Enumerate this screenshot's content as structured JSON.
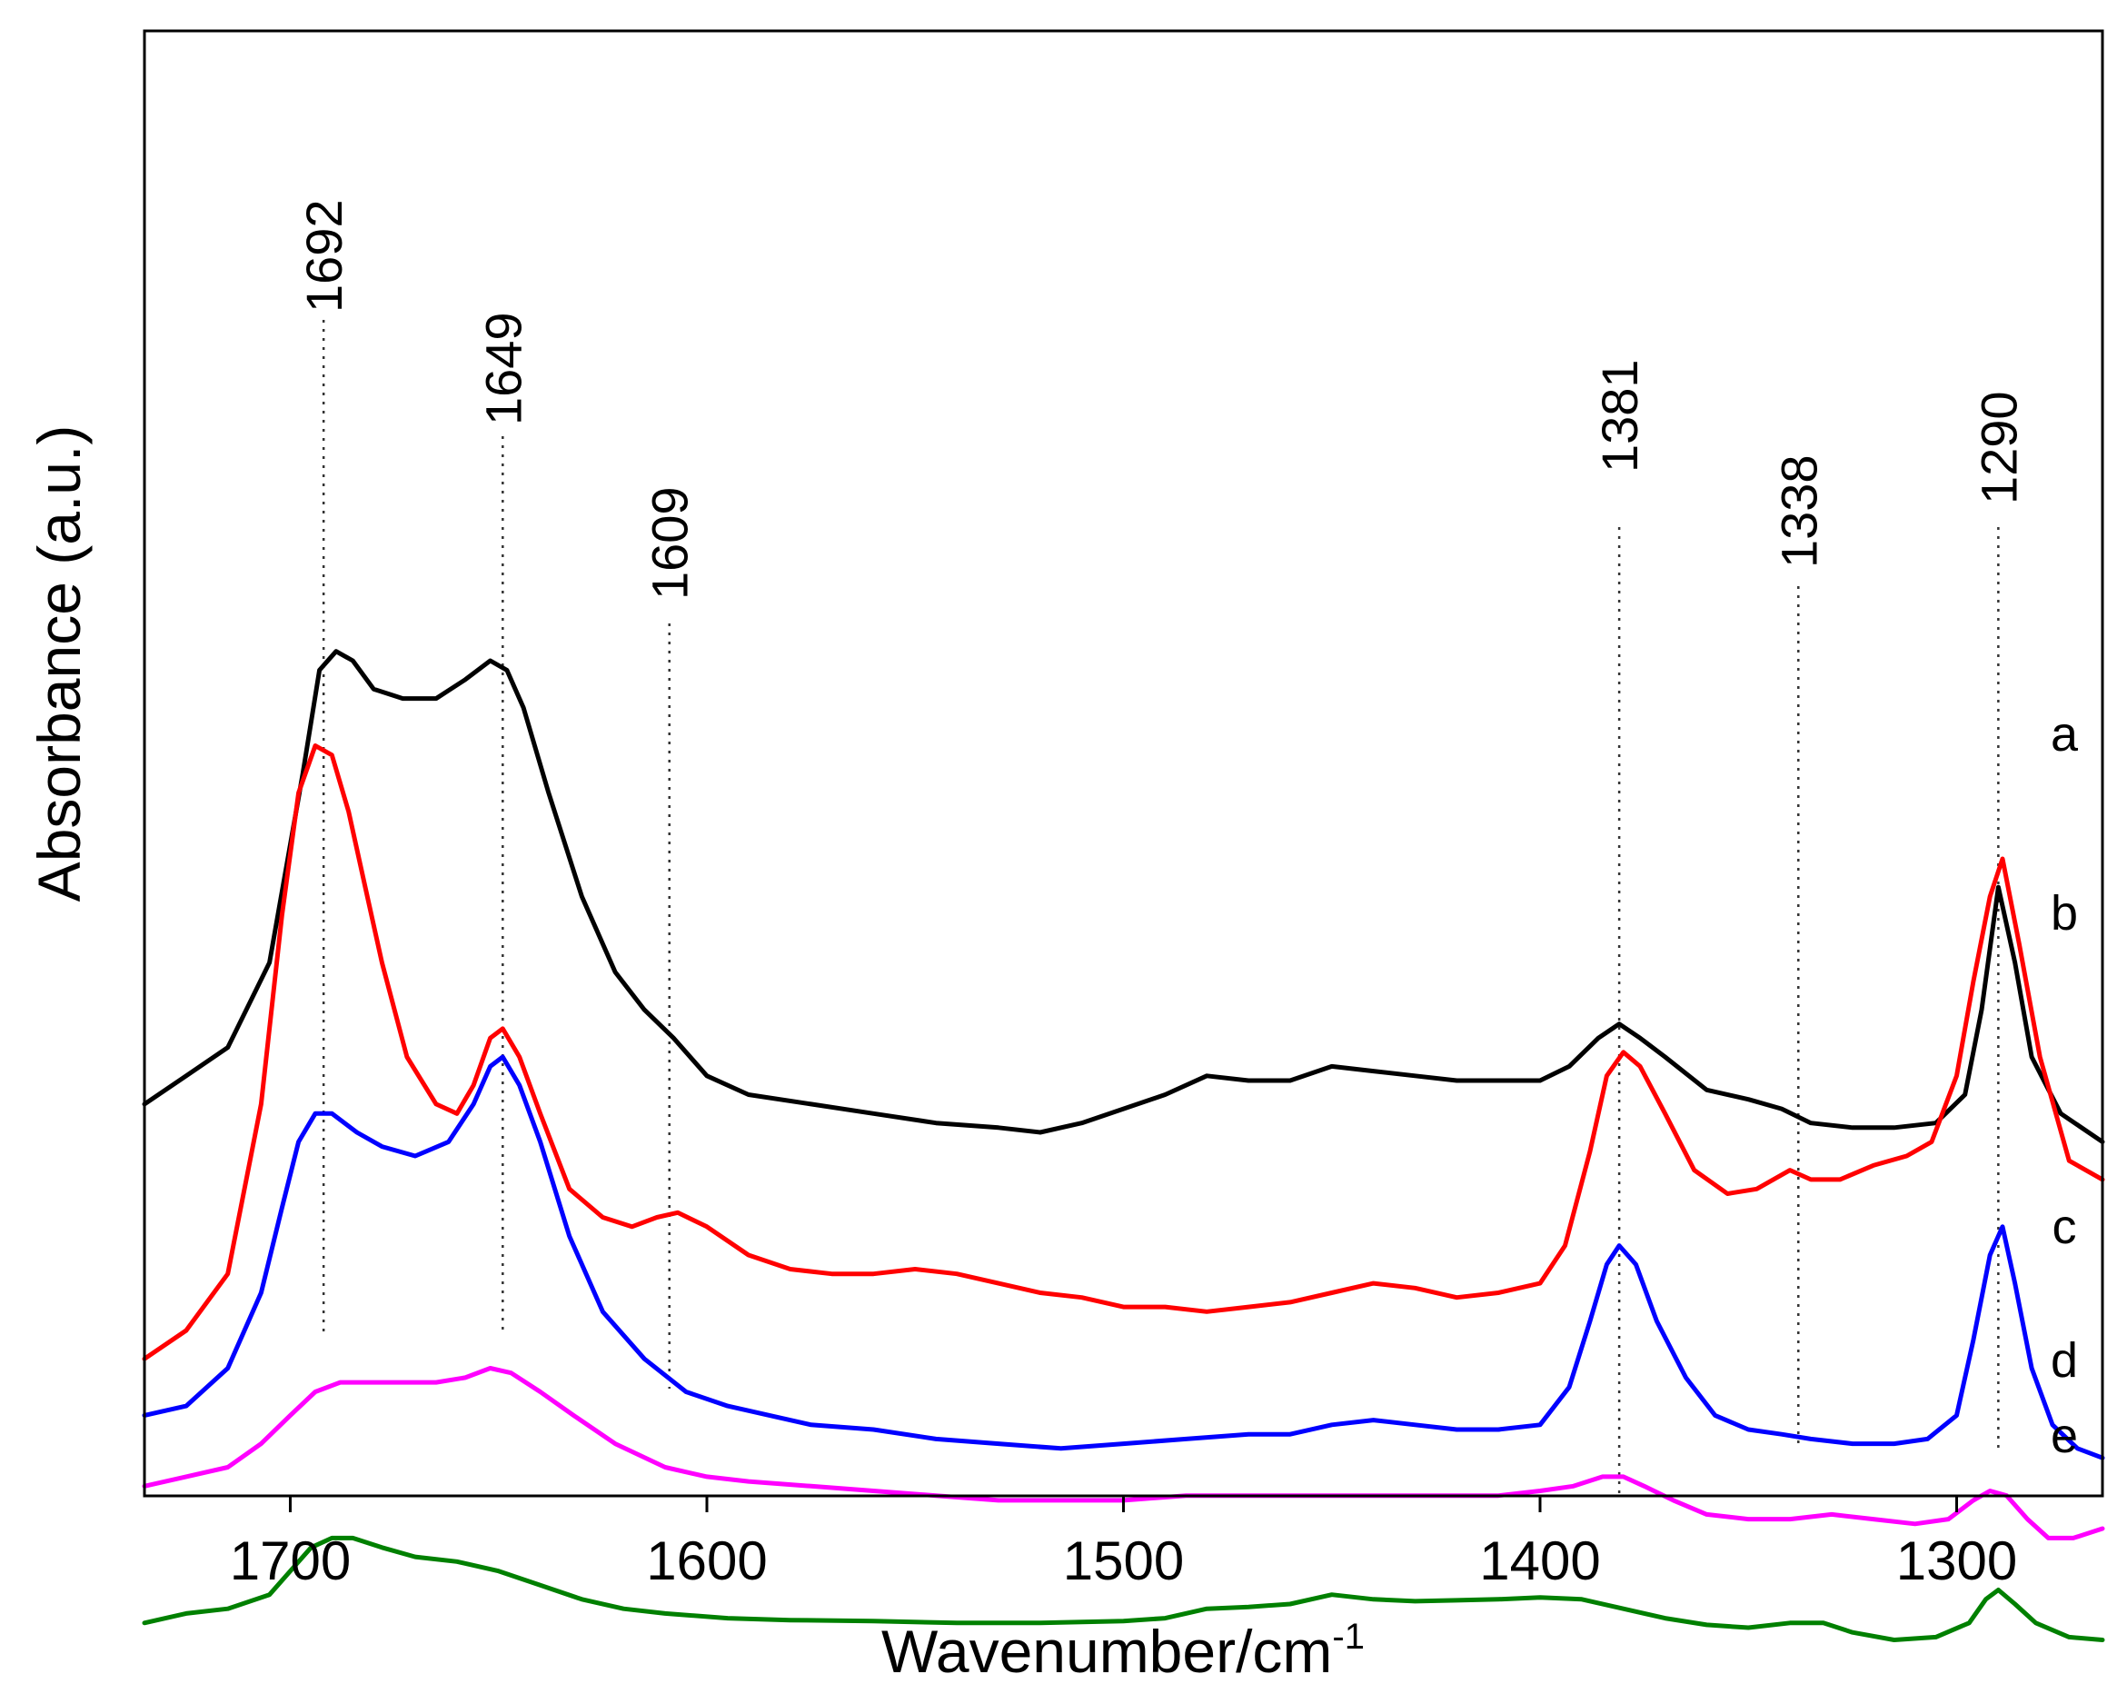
{
  "chart_data": {
    "type": "line",
    "xlabel": "Wavenumber/cm",
    "xlabel_superscript": "-1",
    "ylabel": "Absorbance (a.u.)",
    "xlim": [
      1735,
      1265
    ],
    "x_reversed": true,
    "yticks_shown": false,
    "xticks": [
      1700,
      1600,
      1500,
      1400,
      1300
    ],
    "xtick_labels": [
      "1700",
      "1600",
      "1500",
      "1400",
      "1300"
    ],
    "peak_markers": [
      {
        "x": 1692,
        "label": "1692"
      },
      {
        "x": 1649,
        "label": "1649"
      },
      {
        "x": 1609,
        "label": "1609"
      },
      {
        "x": 1381,
        "label": "1381"
      },
      {
        "x": 1338,
        "label": "1338"
      },
      {
        "x": 1290,
        "label": "1290"
      }
    ],
    "series": [
      {
        "name": "a",
        "label": "a",
        "color": "#000000",
        "points": [
          [
            1735,
            0.45
          ],
          [
            1725,
            0.48
          ],
          [
            1715,
            0.51
          ],
          [
            1705,
            0.6
          ],
          [
            1697,
            0.8
          ],
          [
            1693,
            0.91
          ],
          [
            1689,
            0.93
          ],
          [
            1685,
            0.92
          ],
          [
            1680,
            0.89
          ],
          [
            1673,
            0.88
          ],
          [
            1665,
            0.88
          ],
          [
            1658,
            0.9
          ],
          [
            1652,
            0.92
          ],
          [
            1648,
            0.91
          ],
          [
            1644,
            0.87
          ],
          [
            1638,
            0.78
          ],
          [
            1630,
            0.67
          ],
          [
            1622,
            0.59
          ],
          [
            1615,
            0.55
          ],
          [
            1608,
            0.52
          ],
          [
            1600,
            0.48
          ],
          [
            1590,
            0.46
          ],
          [
            1575,
            0.45
          ],
          [
            1560,
            0.44
          ],
          [
            1545,
            0.43
          ],
          [
            1530,
            0.425
          ],
          [
            1520,
            0.42
          ],
          [
            1510,
            0.43
          ],
          [
            1500,
            0.445
          ],
          [
            1490,
            0.46
          ],
          [
            1480,
            0.48
          ],
          [
            1470,
            0.475
          ],
          [
            1460,
            0.475
          ],
          [
            1450,
            0.49
          ],
          [
            1440,
            0.485
          ],
          [
            1430,
            0.48
          ],
          [
            1420,
            0.475
          ],
          [
            1410,
            0.475
          ],
          [
            1400,
            0.475
          ],
          [
            1393,
            0.49
          ],
          [
            1386,
            0.52
          ],
          [
            1381,
            0.535
          ],
          [
            1376,
            0.52
          ],
          [
            1370,
            0.5
          ],
          [
            1360,
            0.465
          ],
          [
            1350,
            0.455
          ],
          [
            1342,
            0.445
          ],
          [
            1335,
            0.43
          ],
          [
            1325,
            0.425
          ],
          [
            1315,
            0.425
          ],
          [
            1305,
            0.43
          ],
          [
            1298,
            0.46
          ],
          [
            1294,
            0.55
          ],
          [
            1290,
            0.68
          ],
          [
            1286,
            0.6
          ],
          [
            1282,
            0.5
          ],
          [
            1275,
            0.44
          ],
          [
            1265,
            0.41
          ]
        ]
      },
      {
        "name": "b",
        "label": "b",
        "color": "#ff0000",
        "points": [
          [
            1735,
            0.18
          ],
          [
            1725,
            0.21
          ],
          [
            1715,
            0.27
          ],
          [
            1707,
            0.45
          ],
          [
            1702,
            0.65
          ],
          [
            1698,
            0.78
          ],
          [
            1694,
            0.83
          ],
          [
            1690,
            0.82
          ],
          [
            1686,
            0.76
          ],
          [
            1682,
            0.68
          ],
          [
            1678,
            0.6
          ],
          [
            1672,
            0.5
          ],
          [
            1665,
            0.45
          ],
          [
            1660,
            0.44
          ],
          [
            1656,
            0.47
          ],
          [
            1652,
            0.52
          ],
          [
            1649,
            0.53
          ],
          [
            1645,
            0.5
          ],
          [
            1640,
            0.44
          ],
          [
            1633,
            0.36
          ],
          [
            1625,
            0.33
          ],
          [
            1618,
            0.32
          ],
          [
            1612,
            0.33
          ],
          [
            1607,
            0.335
          ],
          [
            1600,
            0.32
          ],
          [
            1590,
            0.29
          ],
          [
            1580,
            0.275
          ],
          [
            1570,
            0.27
          ],
          [
            1560,
            0.27
          ],
          [
            1550,
            0.275
          ],
          [
            1540,
            0.27
          ],
          [
            1530,
            0.26
          ],
          [
            1520,
            0.25
          ],
          [
            1510,
            0.245
          ],
          [
            1500,
            0.235
          ],
          [
            1490,
            0.235
          ],
          [
            1480,
            0.23
          ],
          [
            1470,
            0.235
          ],
          [
            1460,
            0.24
          ],
          [
            1450,
            0.25
          ],
          [
            1440,
            0.26
          ],
          [
            1430,
            0.255
          ],
          [
            1420,
            0.245
          ],
          [
            1410,
            0.25
          ],
          [
            1400,
            0.26
          ],
          [
            1394,
            0.3
          ],
          [
            1388,
            0.4
          ],
          [
            1384,
            0.48
          ],
          [
            1380,
            0.505
          ],
          [
            1376,
            0.49
          ],
          [
            1370,
            0.44
          ],
          [
            1363,
            0.38
          ],
          [
            1355,
            0.355
          ],
          [
            1348,
            0.36
          ],
          [
            1340,
            0.38
          ],
          [
            1335,
            0.37
          ],
          [
            1328,
            0.37
          ],
          [
            1320,
            0.385
          ],
          [
            1312,
            0.395
          ],
          [
            1306,
            0.41
          ],
          [
            1300,
            0.48
          ],
          [
            1296,
            0.58
          ],
          [
            1292,
            0.67
          ],
          [
            1289,
            0.71
          ],
          [
            1285,
            0.62
          ],
          [
            1280,
            0.5
          ],
          [
            1273,
            0.39
          ],
          [
            1265,
            0.37
          ]
        ]
      },
      {
        "name": "c",
        "label": "c",
        "color": "#0000ff",
        "points": [
          [
            1735,
            0.12
          ],
          [
            1725,
            0.13
          ],
          [
            1715,
            0.17
          ],
          [
            1707,
            0.25
          ],
          [
            1702,
            0.34
          ],
          [
            1698,
            0.41
          ],
          [
            1694,
            0.44
          ],
          [
            1690,
            0.44
          ],
          [
            1684,
            0.42
          ],
          [
            1678,
            0.405
          ],
          [
            1670,
            0.395
          ],
          [
            1662,
            0.41
          ],
          [
            1656,
            0.45
          ],
          [
            1652,
            0.49
          ],
          [
            1649,
            0.5
          ],
          [
            1645,
            0.47
          ],
          [
            1640,
            0.41
          ],
          [
            1633,
            0.31
          ],
          [
            1625,
            0.23
          ],
          [
            1615,
            0.18
          ],
          [
            1605,
            0.145
          ],
          [
            1595,
            0.13
          ],
          [
            1585,
            0.12
          ],
          [
            1575,
            0.11
          ],
          [
            1560,
            0.105
          ],
          [
            1545,
            0.095
          ],
          [
            1530,
            0.09
          ],
          [
            1515,
            0.085
          ],
          [
            1500,
            0.09
          ],
          [
            1485,
            0.095
          ],
          [
            1470,
            0.1
          ],
          [
            1460,
            0.1
          ],
          [
            1450,
            0.11
          ],
          [
            1440,
            0.115
          ],
          [
            1430,
            0.11
          ],
          [
            1420,
            0.105
          ],
          [
            1410,
            0.105
          ],
          [
            1400,
            0.11
          ],
          [
            1393,
            0.15
          ],
          [
            1388,
            0.22
          ],
          [
            1384,
            0.28
          ],
          [
            1381,
            0.3
          ],
          [
            1377,
            0.28
          ],
          [
            1372,
            0.22
          ],
          [
            1365,
            0.16
          ],
          [
            1358,
            0.12
          ],
          [
            1350,
            0.105
          ],
          [
            1342,
            0.1
          ],
          [
            1335,
            0.095
          ],
          [
            1325,
            0.09
          ],
          [
            1315,
            0.09
          ],
          [
            1307,
            0.095
          ],
          [
            1300,
            0.12
          ],
          [
            1296,
            0.2
          ],
          [
            1292,
            0.29
          ],
          [
            1289,
            0.32
          ],
          [
            1286,
            0.26
          ],
          [
            1282,
            0.17
          ],
          [
            1277,
            0.11
          ],
          [
            1271,
            0.085
          ],
          [
            1265,
            0.075
          ]
        ]
      },
      {
        "name": "d",
        "label": "d",
        "color": "#ff00ff",
        "points": [
          [
            1735,
            0.045
          ],
          [
            1725,
            0.055
          ],
          [
            1715,
            0.065
          ],
          [
            1707,
            0.09
          ],
          [
            1700,
            0.12
          ],
          [
            1694,
            0.145
          ],
          [
            1688,
            0.155
          ],
          [
            1680,
            0.155
          ],
          [
            1672,
            0.155
          ],
          [
            1665,
            0.155
          ],
          [
            1658,
            0.16
          ],
          [
            1652,
            0.17
          ],
          [
            1647,
            0.165
          ],
          [
            1640,
            0.145
          ],
          [
            1632,
            0.12
          ],
          [
            1622,
            0.09
          ],
          [
            1610,
            0.065
          ],
          [
            1600,
            0.055
          ],
          [
            1590,
            0.05
          ],
          [
            1575,
            0.045
          ],
          [
            1560,
            0.04
          ],
          [
            1545,
            0.035
          ],
          [
            1530,
            0.03
          ],
          [
            1515,
            0.03
          ],
          [
            1500,
            0.03
          ],
          [
            1485,
            0.035
          ],
          [
            1470,
            0.035
          ],
          [
            1455,
            0.035
          ],
          [
            1440,
            0.035
          ],
          [
            1425,
            0.035
          ],
          [
            1410,
            0.035
          ],
          [
            1400,
            0.04
          ],
          [
            1392,
            0.045
          ],
          [
            1385,
            0.055
          ],
          [
            1380,
            0.055
          ],
          [
            1375,
            0.045
          ],
          [
            1368,
            0.03
          ],
          [
            1360,
            0.015
          ],
          [
            1350,
            0.01
          ],
          [
            1340,
            0.01
          ],
          [
            1330,
            0.015
          ],
          [
            1320,
            0.01
          ],
          [
            1310,
            0.005
          ],
          [
            1302,
            0.01
          ],
          [
            1296,
            0.03
          ],
          [
            1292,
            0.04
          ],
          [
            1288,
            0.035
          ],
          [
            1283,
            0.01
          ],
          [
            1278,
            -0.01
          ],
          [
            1272,
            -0.01
          ],
          [
            1265,
            0.0
          ]
        ]
      },
      {
        "name": "e",
        "label": "e",
        "color": "#008000",
        "points": [
          [
            1735,
            -0.1
          ],
          [
            1725,
            -0.09
          ],
          [
            1715,
            -0.085
          ],
          [
            1705,
            -0.07
          ],
          [
            1699,
            -0.04
          ],
          [
            1695,
            -0.02
          ],
          [
            1690,
            -0.01
          ],
          [
            1685,
            -0.01
          ],
          [
            1678,
            -0.02
          ],
          [
            1670,
            -0.03
          ],
          [
            1660,
            -0.035
          ],
          [
            1650,
            -0.045
          ],
          [
            1640,
            -0.06
          ],
          [
            1630,
            -0.075
          ],
          [
            1620,
            -0.085
          ],
          [
            1610,
            -0.09
          ],
          [
            1595,
            -0.095
          ],
          [
            1580,
            -0.097
          ],
          [
            1560,
            -0.098
          ],
          [
            1540,
            -0.1
          ],
          [
            1520,
            -0.1
          ],
          [
            1500,
            -0.098
          ],
          [
            1490,
            -0.095
          ],
          [
            1480,
            -0.085
          ],
          [
            1470,
            -0.083
          ],
          [
            1460,
            -0.08
          ],
          [
            1450,
            -0.07
          ],
          [
            1440,
            -0.075
          ],
          [
            1430,
            -0.077
          ],
          [
            1420,
            -0.076
          ],
          [
            1410,
            -0.075
          ],
          [
            1400,
            -0.073
          ],
          [
            1390,
            -0.075
          ],
          [
            1380,
            -0.085
          ],
          [
            1370,
            -0.095
          ],
          [
            1360,
            -0.102
          ],
          [
            1350,
            -0.105
          ],
          [
            1340,
            -0.1
          ],
          [
            1332,
            -0.1
          ],
          [
            1325,
            -0.11
          ],
          [
            1315,
            -0.118
          ],
          [
            1305,
            -0.115
          ],
          [
            1297,
            -0.1
          ],
          [
            1293,
            -0.075
          ],
          [
            1290,
            -0.065
          ],
          [
            1286,
            -0.08
          ],
          [
            1281,
            -0.1
          ],
          [
            1273,
            -0.115
          ],
          [
            1265,
            -0.118
          ]
        ]
      }
    ]
  }
}
